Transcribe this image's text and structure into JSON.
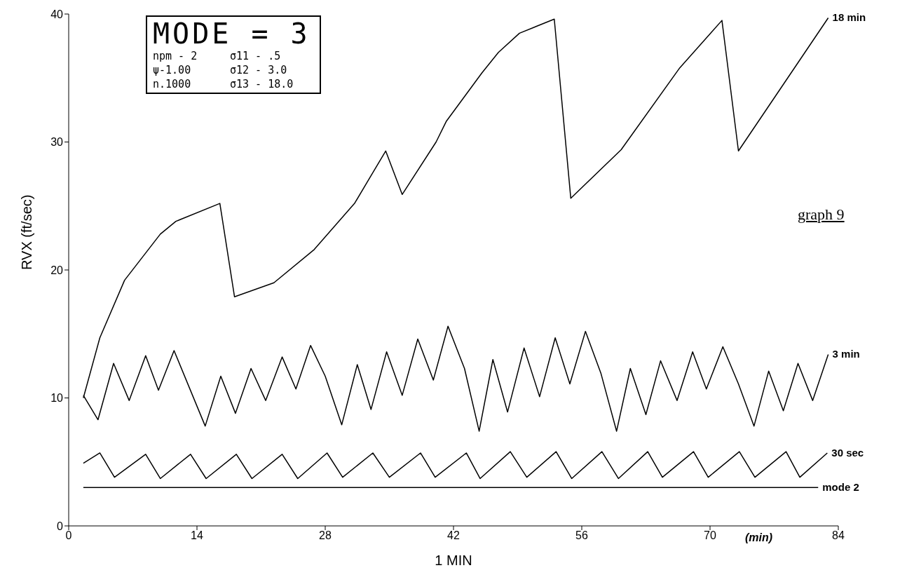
{
  "chart_data": {
    "type": "line",
    "xlabel": "1 MIN",
    "ylabel": "RVX (ft/sec)",
    "xlim": [
      0,
      84
    ],
    "xticks": [
      0,
      14,
      28,
      42,
      56,
      70,
      84
    ],
    "ylim": [
      0,
      40
    ],
    "yticks": [
      0,
      10,
      20,
      30,
      40
    ],
    "grid": false,
    "legend": false,
    "marker": "none",
    "line_style": "solid",
    "annotations": [
      "MODE = 3",
      "npm - 2",
      "σ11 - .5",
      "ψ-1.00",
      "σ12 - 3.0",
      "n.1000",
      "σ13 - 18.0",
      "graph 9",
      "(min)"
    ],
    "series": [
      {
        "name": "18 min",
        "color": "#000000",
        "x": [
          1.6,
          3.4,
          6.1,
          10.0,
          11.7,
          16.5,
          18.1,
          22.4,
          26.8,
          31.2,
          34.6,
          36.4,
          40.1,
          41.2,
          45.1,
          46.9,
          49.2,
          53.0,
          54.8,
          60.3,
          66.7,
          71.3,
          73.1,
          82.9
        ],
        "values": [
          10.0,
          14.7,
          19.2,
          22.8,
          23.8,
          25.2,
          17.9,
          19.0,
          21.6,
          25.2,
          29.3,
          25.9,
          30.0,
          31.6,
          35.4,
          37.0,
          38.5,
          39.6,
          25.6,
          29.4,
          35.8,
          39.5,
          29.3,
          39.7
        ]
      },
      {
        "name": "3 min",
        "color": "#000000",
        "x": [
          1.6,
          3.2,
          4.9,
          6.6,
          8.4,
          9.8,
          11.5,
          14.9,
          16.6,
          18.2,
          19.9,
          21.5,
          23.3,
          24.8,
          26.4,
          28.0,
          29.8,
          31.5,
          33.0,
          34.7,
          36.4,
          38.1,
          39.8,
          41.4,
          43.2,
          44.8,
          46.3,
          47.9,
          49.7,
          51.4,
          53.1,
          54.7,
          56.4,
          58.1,
          59.8,
          61.3,
          63.0,
          64.6,
          66.4,
          68.1,
          69.6,
          71.4,
          73.1,
          74.8,
          76.4,
          78.0,
          79.6,
          81.2,
          82.9
        ],
        "values": [
          10.2,
          8.3,
          12.7,
          9.8,
          13.3,
          10.6,
          13.7,
          7.8,
          11.7,
          8.8,
          12.3,
          9.8,
          13.2,
          10.7,
          14.1,
          11.7,
          7.9,
          12.6,
          9.1,
          13.6,
          10.2,
          14.6,
          11.4,
          15.6,
          12.3,
          7.4,
          13.0,
          8.9,
          13.9,
          10.1,
          14.7,
          11.1,
          15.2,
          11.9,
          7.4,
          12.3,
          8.7,
          12.9,
          9.8,
          13.6,
          10.7,
          14.0,
          11.1,
          7.8,
          12.1,
          9.0,
          12.7,
          9.8,
          13.4
        ]
      },
      {
        "name": "30 sec",
        "color": "#000000",
        "x": [
          1.6,
          3.4,
          5.0,
          8.4,
          10.0,
          13.3,
          15.0,
          18.3,
          20.0,
          23.3,
          25.0,
          28.2,
          29.9,
          33.2,
          35.0,
          38.4,
          40.0,
          43.4,
          44.9,
          48.2,
          50.0,
          53.2,
          54.9,
          58.2,
          60.0,
          63.2,
          64.8,
          68.2,
          69.8,
          73.2,
          74.9,
          78.3,
          79.8,
          82.8
        ],
        "values": [
          4.9,
          5.7,
          3.8,
          5.6,
          3.7,
          5.6,
          3.7,
          5.6,
          3.7,
          5.6,
          3.7,
          5.7,
          3.8,
          5.7,
          3.8,
          5.7,
          3.8,
          5.7,
          3.7,
          5.8,
          3.8,
          5.8,
          3.7,
          5.8,
          3.7,
          5.8,
          3.8,
          5.8,
          3.8,
          5.8,
          3.8,
          5.8,
          3.8,
          5.7
        ]
      },
      {
        "name": "mode 2",
        "color": "#000000",
        "x": [
          1.6,
          81.8
        ],
        "values": [
          3.0,
          3.0
        ]
      }
    ]
  }
}
